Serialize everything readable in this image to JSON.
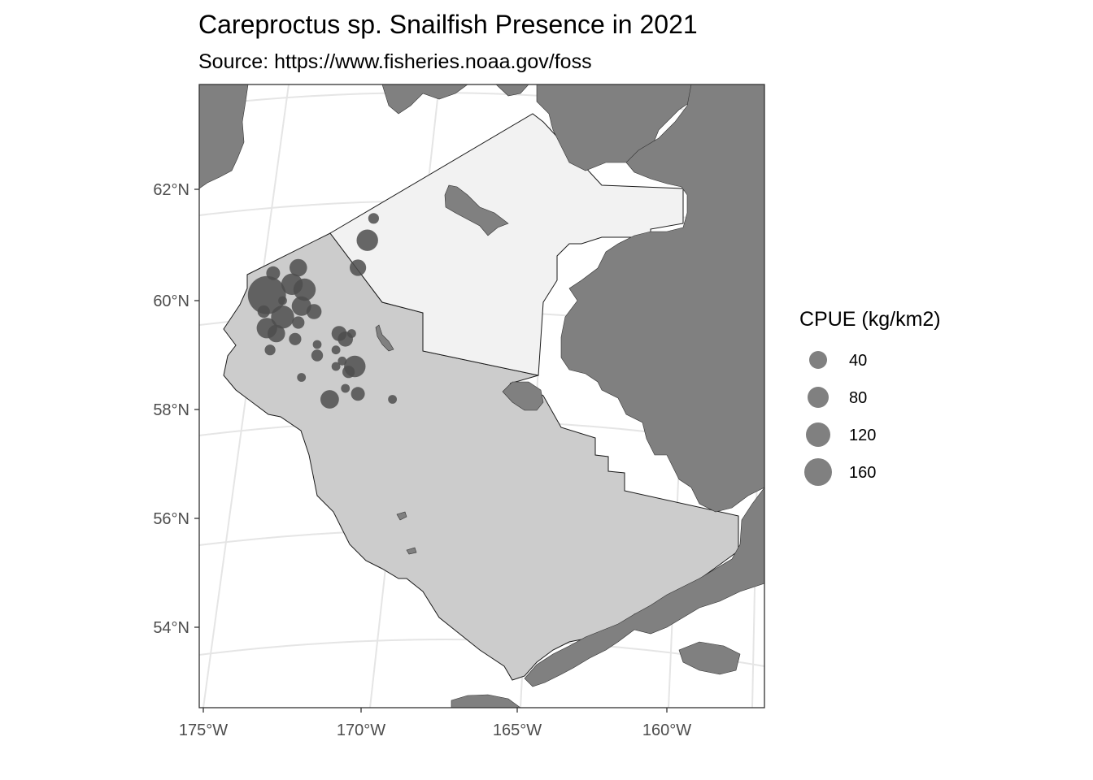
{
  "chart_data": {
    "type": "scatter",
    "title": "Careproctus sp. Snailfish Presence in 2021",
    "subtitle": "Source: https://www.fisheries.noaa.gov/foss",
    "xlabel": "",
    "ylabel": "",
    "x_ticks": [
      {
        "value": -175,
        "label": "175°W"
      },
      {
        "value": -170,
        "label": "170°W"
      },
      {
        "value": -165,
        "label": "165°W"
      },
      {
        "value": -160,
        "label": "160°W"
      }
    ],
    "y_ticks": [
      {
        "value": 62,
        "label": "62°N"
      },
      {
        "value": 60,
        "label": "60°N"
      },
      {
        "value": 58,
        "label": "58°N"
      },
      {
        "value": 56,
        "label": "56°N"
      },
      {
        "value": 54,
        "label": "54°N"
      }
    ],
    "xlim": [
      -175.2,
      -157
    ],
    "ylim": [
      52.9,
      63.6
    ],
    "grid": true,
    "legend": {
      "title": "CPUE (kg/km2)",
      "position": "right",
      "entries": [
        {
          "label": "40",
          "value": 40
        },
        {
          "label": "80",
          "value": 80
        },
        {
          "label": "120",
          "value": 120
        },
        {
          "label": "160",
          "value": 160
        }
      ]
    },
    "colors": {
      "land": "#808080",
      "survey_area": "#cccccc",
      "northern_survey_area": "#f2f2f2",
      "points": "#4d4d4d",
      "grid": "#e5e5e5",
      "panel_border": "#333333"
    },
    "points": [
      {
        "lon": -173.0,
        "lat": 60.1,
        "cpue": 190
      },
      {
        "lon": -172.5,
        "lat": 59.7,
        "cpue": 70
      },
      {
        "lon": -172.2,
        "lat": 60.3,
        "cpue": 60
      },
      {
        "lon": -171.8,
        "lat": 60.2,
        "cpue": 65
      },
      {
        "lon": -171.9,
        "lat": 59.9,
        "cpue": 50
      },
      {
        "lon": -173.0,
        "lat": 59.5,
        "cpue": 55
      },
      {
        "lon": -172.7,
        "lat": 59.4,
        "cpue": 40
      },
      {
        "lon": -172.0,
        "lat": 60.6,
        "cpue": 40
      },
      {
        "lon": -172.8,
        "lat": 60.5,
        "cpue": 25
      },
      {
        "lon": -173.1,
        "lat": 59.8,
        "cpue": 20
      },
      {
        "lon": -172.0,
        "lat": 59.6,
        "cpue": 20
      },
      {
        "lon": -171.5,
        "lat": 59.8,
        "cpue": 30
      },
      {
        "lon": -172.1,
        "lat": 59.3,
        "cpue": 20
      },
      {
        "lon": -172.9,
        "lat": 59.1,
        "cpue": 15
      },
      {
        "lon": -172.5,
        "lat": 60.0,
        "cpue": 10
      },
      {
        "lon": -171.4,
        "lat": 59.2,
        "cpue": 10
      },
      {
        "lon": -171.4,
        "lat": 59.0,
        "cpue": 18
      },
      {
        "lon": -171.9,
        "lat": 58.6,
        "cpue": 10
      },
      {
        "lon": -170.7,
        "lat": 59.4,
        "cpue": 30
      },
      {
        "lon": -170.5,
        "lat": 59.3,
        "cpue": 30
      },
      {
        "lon": -170.3,
        "lat": 59.4,
        "cpue": 10
      },
      {
        "lon": -170.8,
        "lat": 59.1,
        "cpue": 10
      },
      {
        "lon": -170.6,
        "lat": 58.9,
        "cpue": 10
      },
      {
        "lon": -170.2,
        "lat": 58.8,
        "cpue": 60
      },
      {
        "lon": -170.4,
        "lat": 58.7,
        "cpue": 20
      },
      {
        "lon": -170.8,
        "lat": 58.8,
        "cpue": 10
      },
      {
        "lon": -170.5,
        "lat": 58.4,
        "cpue": 10
      },
      {
        "lon": -170.1,
        "lat": 58.3,
        "cpue": 25
      },
      {
        "lon": -171.0,
        "lat": 58.2,
        "cpue": 45
      },
      {
        "lon": -169.0,
        "lat": 58.2,
        "cpue": 10
      },
      {
        "lon": -170.1,
        "lat": 60.6,
        "cpue": 35
      },
      {
        "lon": -169.8,
        "lat": 61.1,
        "cpue": 60
      },
      {
        "lon": -169.6,
        "lat": 61.5,
        "cpue": 15
      }
    ]
  }
}
